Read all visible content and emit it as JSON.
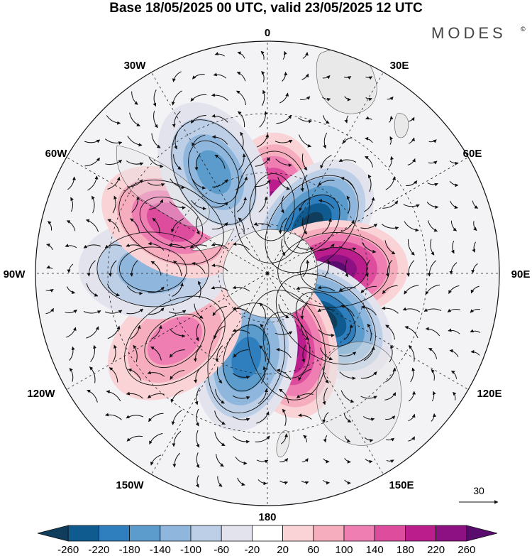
{
  "title": "Base 18/05/2025 00 UTC, valid 23/05/2025 12 UTC",
  "brand": {
    "name": "MODES",
    "mark": "©"
  },
  "longitudes": [
    "0",
    "30E",
    "60E",
    "90E",
    "120E",
    "150E",
    "180",
    "150W",
    "120W",
    "90W",
    "60W",
    "30W"
  ],
  "vector_scale": {
    "value": "30"
  },
  "colorbar": {
    "ticks": [
      "-260",
      "-220",
      "-180",
      "-140",
      "-100",
      "-60",
      "-20",
      "20",
      "60",
      "100",
      "140",
      "180",
      "220",
      "260"
    ],
    "colors": [
      "#103d5c",
      "#0f5a8e",
      "#2f7fbe",
      "#5b9ccc",
      "#8fb6dc",
      "#bdcfe6",
      "#e3e3ee",
      "#ffffff",
      "#f9d3d6",
      "#f6aebf",
      "#ef7fb2",
      "#de4c9e",
      "#bb1e8c",
      "#8d1182",
      "#5a0c6e"
    ]
  },
  "colors": {
    "land": "#e4e4e4",
    "antarctica": "#eeeeee",
    "neutral": "#f3f3f6"
  },
  "anomaly_centers": [
    {
      "lon": 4,
      "colat": 27,
      "value": 230
    },
    {
      "lon": 42,
      "colat": 27,
      "value": -270
    },
    {
      "lon": 87,
      "colat": 27,
      "value": 265
    },
    {
      "lon": 128,
      "colat": 30,
      "value": -265
    },
    {
      "lon": 165,
      "colat": 30,
      "value": 240
    },
    {
      "lon": -166,
      "colat": 35,
      "value": -200
    },
    {
      "lon": -126,
      "colat": 45,
      "value": 110
    },
    {
      "lon": -88,
      "colat": 45,
      "value": -130
    },
    {
      "lon": -62,
      "colat": 43,
      "value": 160
    },
    {
      "lon": -28,
      "colat": 45,
      "value": -150
    }
  ]
}
